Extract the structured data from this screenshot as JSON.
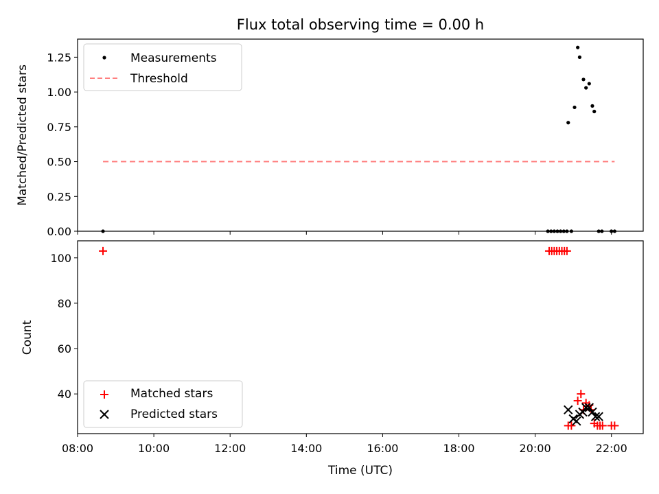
{
  "chart_data": [
    {
      "type": "scatter",
      "title": "Flux total observing time = 0.00 h",
      "xlabel": "",
      "ylabel": "Matched/Predicted stars",
      "xlim": [
        "08:00",
        "22:50"
      ],
      "ylim": [
        0,
        1.38
      ],
      "yticks": [
        "0.00",
        "0.25",
        "0.50",
        "0.75",
        "1.00",
        "1.25"
      ],
      "legend_position": "top-left",
      "series": [
        {
          "name": "Measurements",
          "marker": "dot",
          "color": "#000000",
          "points": [
            [
              "08:40",
              0.0
            ],
            [
              "20:20",
              0.0
            ],
            [
              "20:25",
              0.0
            ],
            [
              "20:30",
              0.0
            ],
            [
              "20:35",
              0.0
            ],
            [
              "20:40",
              0.0
            ],
            [
              "20:45",
              0.0
            ],
            [
              "20:50",
              0.0
            ],
            [
              "20:57",
              0.0
            ],
            [
              "21:40",
              0.0
            ],
            [
              "21:45",
              0.0
            ],
            [
              "22:00",
              0.0
            ],
            [
              "22:05",
              0.0
            ],
            [
              "20:52",
              0.78
            ],
            [
              "21:02",
              0.89
            ],
            [
              "21:07",
              1.32
            ],
            [
              "21:10",
              1.25
            ],
            [
              "21:16",
              1.09
            ],
            [
              "21:20",
              1.03
            ],
            [
              "21:25",
              1.06
            ],
            [
              "21:30",
              0.9
            ],
            [
              "21:33",
              0.86
            ]
          ]
        },
        {
          "name": "Threshold",
          "style": "dashed-line",
          "color": "#ff7f7f",
          "points": [
            [
              "08:40",
              0.5
            ],
            [
              "22:05",
              0.5
            ]
          ]
        }
      ]
    },
    {
      "type": "scatter",
      "xlabel": "Time (UTC)",
      "ylabel": "Count",
      "xlim": [
        "08:00",
        "22:50"
      ],
      "ylim": [
        22.5,
        107.5
      ],
      "xticks": [
        "08:00",
        "10:00",
        "12:00",
        "14:00",
        "16:00",
        "18:00",
        "20:00",
        "22:00"
      ],
      "yticks": [
        "40",
        "60",
        "80",
        "100"
      ],
      "legend_position": "bottom-left",
      "series": [
        {
          "name": "Matched stars",
          "marker": "plus",
          "color": "#ff0000",
          "points": [
            [
              "08:40",
              103
            ],
            [
              "20:22",
              103
            ],
            [
              "20:26",
              103
            ],
            [
              "20:30",
              103
            ],
            [
              "20:34",
              103
            ],
            [
              "20:38",
              103
            ],
            [
              "20:42",
              103
            ],
            [
              "20:46",
              103
            ],
            [
              "20:50",
              103
            ],
            [
              "20:52",
              26
            ],
            [
              "20:57",
              26
            ],
            [
              "21:07",
              37
            ],
            [
              "21:12",
              40
            ],
            [
              "21:16",
              33
            ],
            [
              "21:20",
              36
            ],
            [
              "21:25",
              35
            ],
            [
              "21:28",
              33
            ],
            [
              "21:33",
              27
            ],
            [
              "21:38",
              26
            ],
            [
              "21:42",
              26
            ],
            [
              "21:46",
              26
            ],
            [
              "22:00",
              26
            ],
            [
              "22:05",
              26
            ]
          ]
        },
        {
          "name": "Predicted stars",
          "marker": "x",
          "color": "#000000",
          "points": [
            [
              "20:52",
              33
            ],
            [
              "21:00",
              29
            ],
            [
              "21:05",
              28
            ],
            [
              "21:10",
              31
            ],
            [
              "21:15",
              32
            ],
            [
              "21:20",
              34
            ],
            [
              "21:25",
              34
            ],
            [
              "21:30",
              32
            ],
            [
              "21:35",
              30
            ],
            [
              "21:40",
              30
            ]
          ]
        }
      ]
    }
  ]
}
